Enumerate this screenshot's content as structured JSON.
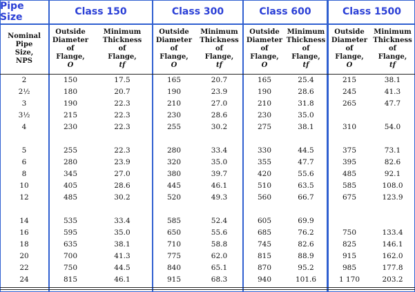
{
  "headers": {
    "pipe_size": "Pipe Size",
    "class150": "Class 150",
    "class300": "Class 300",
    "class600": "Class 600",
    "class1500": "Class 1500"
  },
  "subheaders": {
    "nominal": [
      "Nominal",
      "Pipe",
      "Size,",
      "NPS"
    ],
    "outside_diameter": [
      "Outside",
      "Diameter",
      "of",
      "Flange,",
      "O"
    ],
    "min_thickness": [
      "Minimum",
      "Thickness",
      "of",
      "Flange,",
      "tf"
    ]
  },
  "rows": [
    {
      "nps": "2",
      "c150_od": "150",
      "c150_t": "17.5",
      "c300_od": "165",
      "c300_t": "20.7",
      "c600_od": "165",
      "c600_t": "25.4",
      "c1500_od": "215",
      "c1500_t": "38.1"
    },
    {
      "nps": "2½",
      "c150_od": "180",
      "c150_t": "20.7",
      "c300_od": "190",
      "c300_t": "23.9",
      "c600_od": "190",
      "c600_t": "28.6",
      "c1500_od": "245",
      "c1500_t": "41.3"
    },
    {
      "nps": "3",
      "c150_od": "190",
      "c150_t": "22.3",
      "c300_od": "210",
      "c300_t": "27.0",
      "c600_od": "210",
      "c600_t": "31.8",
      "c1500_od": "265",
      "c1500_t": "47.7"
    },
    {
      "nps": "3½",
      "c150_od": "215",
      "c150_t": "22.3",
      "c300_od": "230",
      "c300_t": "28.6",
      "c600_od": "230",
      "c600_t": "35.0",
      "c1500_od": "",
      "c1500_t": ""
    },
    {
      "nps": "4",
      "c150_od": "230",
      "c150_t": "22.3",
      "c300_od": "255",
      "c300_t": "30.2",
      "c600_od": "275",
      "c600_t": "38.1",
      "c1500_od": "310",
      "c1500_t": "54.0"
    },
    {
      "nps": "5",
      "c150_od": "255",
      "c150_t": "22.3",
      "c300_od": "280",
      "c300_t": "33.4",
      "c600_od": "330",
      "c600_t": "44.5",
      "c1500_od": "375",
      "c1500_t": "73.1"
    },
    {
      "nps": "6",
      "c150_od": "280",
      "c150_t": "23.9",
      "c300_od": "320",
      "c300_t": "35.0",
      "c600_od": "355",
      "c600_t": "47.7",
      "c1500_od": "395",
      "c1500_t": "82.6"
    },
    {
      "nps": "8",
      "c150_od": "345",
      "c150_t": "27.0",
      "c300_od": "380",
      "c300_t": "39.7",
      "c600_od": "420",
      "c600_t": "55.6",
      "c1500_od": "485",
      "c1500_t": "92.1"
    },
    {
      "nps": "10",
      "c150_od": "405",
      "c150_t": "28.6",
      "c300_od": "445",
      "c300_t": "46.1",
      "c600_od": "510",
      "c600_t": "63.5",
      "c1500_od": "585",
      "c1500_t": "108.0"
    },
    {
      "nps": "12",
      "c150_od": "485",
      "c150_t": "30.2",
      "c300_od": "520",
      "c300_t": "49.3",
      "c600_od": "560",
      "c600_t": "66.7",
      "c1500_od": "675",
      "c1500_t": "123.9"
    },
    {
      "nps": "14",
      "c150_od": "535",
      "c150_t": "33.4",
      "c300_od": "585",
      "c300_t": "52.4",
      "c600_od": "605",
      "c600_t": "69.9",
      "c1500_od": "",
      "c1500_t": ""
    },
    {
      "nps": "16",
      "c150_od": "595",
      "c150_t": "35.0",
      "c300_od": "650",
      "c300_t": "55.6",
      "c600_od": "685",
      "c600_t": "76.2",
      "c1500_od": "750",
      "c1500_t": "133.4"
    },
    {
      "nps": "18",
      "c150_od": "635",
      "c150_t": "38.1",
      "c300_od": "710",
      "c300_t": "58.8",
      "c600_od": "745",
      "c600_t": "82.6",
      "c1500_od": "825",
      "c1500_t": "146.1"
    },
    {
      "nps": "20",
      "c150_od": "700",
      "c150_t": "41.3",
      "c300_od": "775",
      "c300_t": "62.0",
      "c600_od": "815",
      "c600_t": "88.9",
      "c1500_od": "915",
      "c1500_t": "162.0"
    },
    {
      "nps": "22",
      "c150_od": "750",
      "c150_t": "44.5",
      "c300_od": "840",
      "c300_t": "65.1",
      "c600_od": "870",
      "c600_t": "95.2",
      "c1500_od": "985",
      "c1500_t": "177.8"
    },
    {
      "nps": "24",
      "c150_od": "815",
      "c150_t": "46.1",
      "c300_od": "915",
      "c300_t": "68.3",
      "c600_od": "940",
      "c600_t": "101.6",
      "c1500_od": "1 170",
      "c1500_t": "203.2"
    }
  ]
}
